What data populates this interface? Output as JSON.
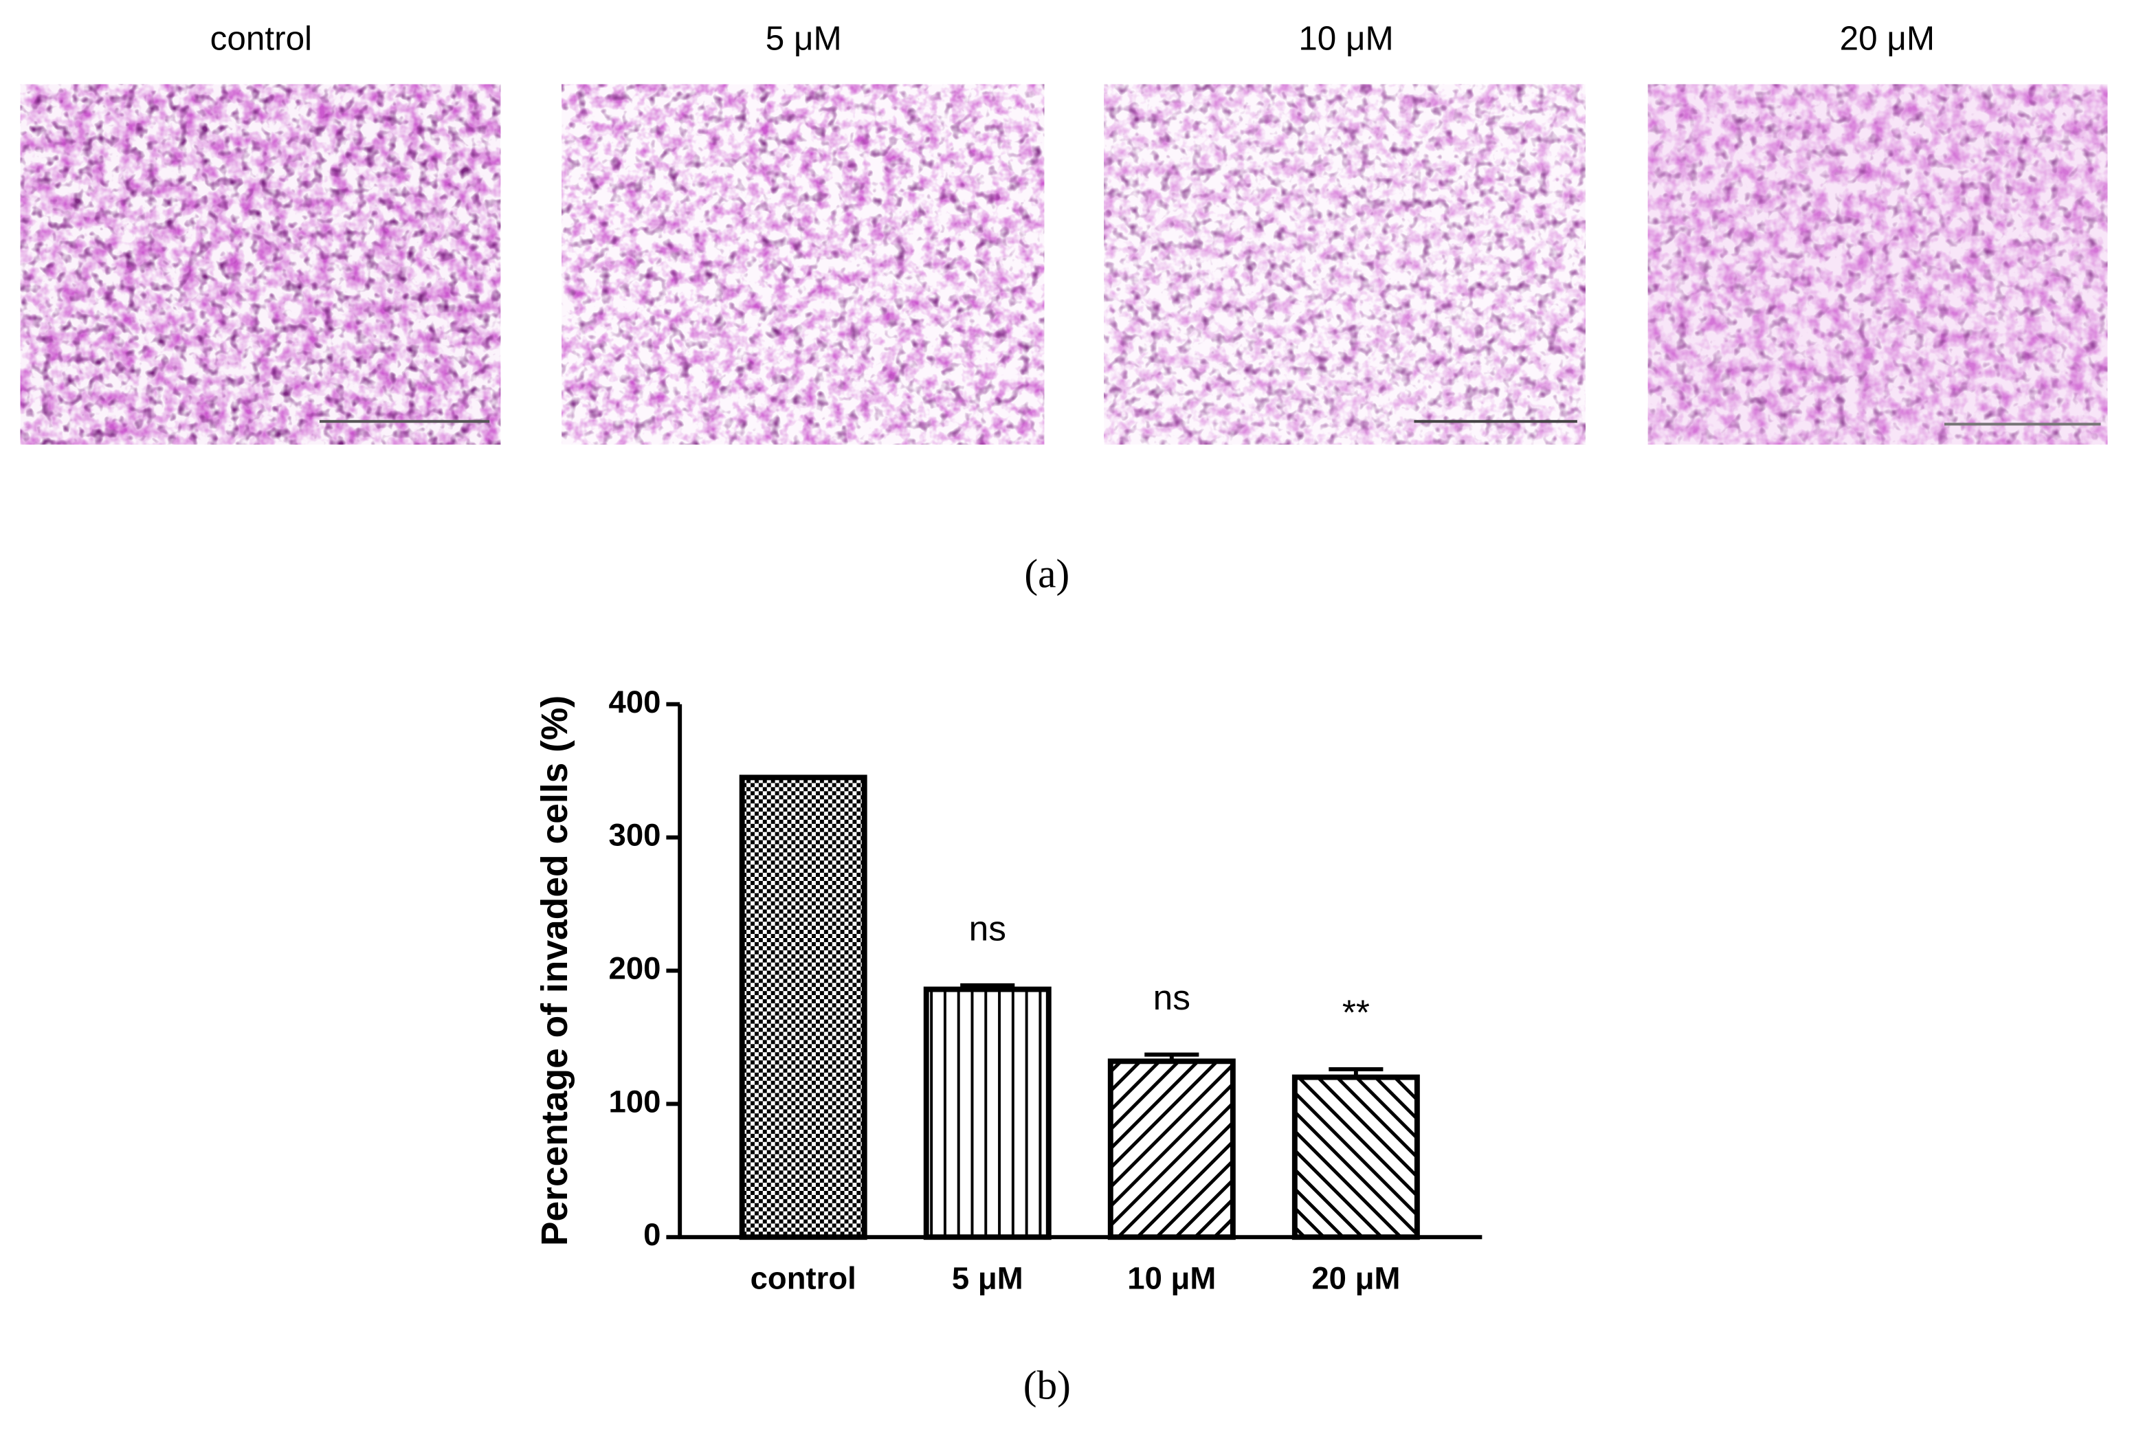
{
  "panel_a": {
    "images": [
      {
        "label": "control"
      },
      {
        "label": "5 μM"
      },
      {
        "label": "10 μM"
      },
      {
        "label": "20 μM"
      }
    ],
    "caption": "(a)"
  },
  "chart_data": {
    "type": "bar",
    "y_label": "Percentage of invaded cells (%)",
    "categories": [
      "control",
      "5 μM",
      "10 μM",
      "20 μM"
    ],
    "values": [
      345,
      186,
      132,
      120
    ],
    "errors": [
      0,
      3,
      5,
      6
    ],
    "annotations": [
      null,
      "ns",
      "ns",
      "**"
    ],
    "hatch": [
      "checker",
      "vertical",
      "diag-up",
      "diag-down"
    ],
    "color": "#000000",
    "ylim": [
      0,
      400
    ],
    "yticks": [
      0,
      100,
      200,
      300,
      400
    ],
    "grid": false
  },
  "panel_b": {
    "caption": "(b)"
  }
}
